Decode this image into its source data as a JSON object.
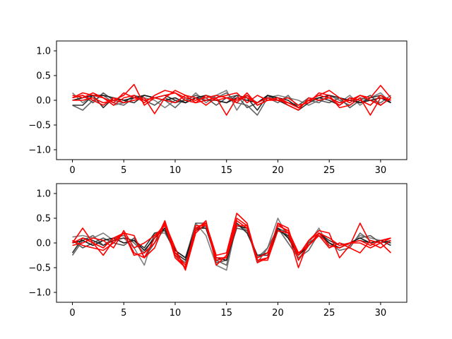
{
  "chart_data": [
    {
      "type": "line",
      "title": "",
      "xlabel": "",
      "ylabel": "",
      "xlim": [
        -1.55,
        32.55
      ],
      "ylim": [
        -1.2,
        1.2
      ],
      "xticks": [
        0,
        5,
        10,
        15,
        20,
        25,
        30
      ],
      "yticks": [
        -1.0,
        -0.5,
        0.0,
        0.5,
        1.0
      ],
      "xtick_labels": [
        "0",
        "5",
        "10",
        "15",
        "20",
        "25",
        "30"
      ],
      "ytick_labels": [
        "−1.0",
        "−0.5",
        "0.0",
        "0.5",
        "1.0"
      ],
      "grid": false,
      "x": [
        0,
        1,
        2,
        3,
        4,
        5,
        6,
        7,
        8,
        9,
        10,
        11,
        12,
        13,
        14,
        15,
        16,
        17,
        18,
        19,
        20,
        21,
        22,
        23,
        24,
        25,
        26,
        27,
        28,
        29,
        30,
        31
      ],
      "series": [
        {
          "color": "#7f7f7f",
          "values": [
            0.15,
            -0.05,
            0.1,
            0.05,
            -0.1,
            -0.05,
            0.1,
            0.05,
            0.0,
            -0.15,
            0.0,
            -0.05,
            0.15,
            -0.05,
            0.1,
            0.2,
            -0.2,
            0.1,
            -0.05,
            0.05,
            0.1,
            0.05,
            0.0,
            -0.1,
            0.0,
            0.05,
            -0.05,
            0.1,
            -0.1,
            0.05,
            0.15,
            -0.05
          ]
        },
        {
          "color": "#666666",
          "values": [
            -0.1,
            -0.2,
            0.0,
            0.1,
            -0.05,
            -0.1,
            0.05,
            0.1,
            0.05,
            0.0,
            -0.15,
            0.05,
            0.0,
            0.1,
            0.05,
            0.15,
            -0.05,
            -0.1,
            -0.3,
            0.05,
            -0.05,
            0.1,
            -0.15,
            0.0,
            -0.05,
            0.1,
            0.0,
            -0.1,
            0.05,
            0.0,
            -0.05,
            0.1
          ]
        },
        {
          "color": "#555555",
          "values": [
            0.05,
            0.1,
            -0.05,
            0.15,
            0.0,
            -0.05,
            0.1,
            0.0,
            -0.1,
            0.05,
            -0.05,
            0.0,
            0.1,
            0.05,
            -0.1,
            0.05,
            0.1,
            -0.15,
            -0.05,
            0.1,
            0.0,
            -0.05,
            -0.1,
            0.05,
            0.0,
            -0.05,
            0.05,
            -0.15,
            0.0,
            0.1,
            -0.1,
            0.05
          ]
        },
        {
          "color": "#333333",
          "values": [
            -0.1,
            -0.1,
            0.1,
            -0.15,
            0.05,
            0.0,
            -0.05,
            0.1,
            0.05,
            0.1,
            0.0,
            -0.05,
            0.05,
            0.0,
            0.0,
            -0.05,
            0.1,
            0.05,
            -0.2,
            0.1,
            0.0,
            -0.1,
            -0.2,
            -0.05,
            0.05,
            0.0,
            -0.1,
            0.05,
            -0.05,
            0.05,
            0.1,
            -0.05
          ]
        },
        {
          "color": "#1a1a1a",
          "values": [
            0.0,
            0.05,
            0.1,
            0.1,
            0.05,
            0.0,
            0.05,
            0.1,
            0.05,
            0.0,
            0.05,
            -0.05,
            0.05,
            0.1,
            0.0,
            -0.05,
            0.05,
            0.0,
            -0.05,
            0.1,
            0.05,
            0.0,
            -0.15,
            0.0,
            0.05,
            0.1,
            0.05,
            0.0,
            -0.05,
            0.0,
            0.05,
            -0.05
          ]
        },
        {
          "color": "#ff0000",
          "values": [
            0.05,
            0.15,
            0.1,
            0.05,
            -0.05,
            0.15,
            0.05,
            0.0,
            0.05,
            0.1,
            0.15,
            0.05,
            0.0,
            0.05,
            0.1,
            0.05,
            -0.05,
            0.15,
            -0.1,
            0.0,
            0.05,
            -0.05,
            -0.15,
            0.0,
            0.1,
            0.05,
            -0.1,
            0.05,
            0.0,
            -0.1,
            0.1,
            0.0
          ]
        },
        {
          "color": "#ff0000",
          "values": [
            0.0,
            0.0,
            0.05,
            -0.05,
            0.0,
            0.1,
            0.32,
            -0.1,
            0.05,
            0.0,
            -0.05,
            0.1,
            0.05,
            -0.1,
            0.05,
            -0.3,
            0.05,
            0.05,
            -0.05,
            0.05,
            0.0,
            -0.05,
            -0.15,
            0.0,
            0.1,
            0.2,
            0.05,
            -0.05,
            0.1,
            0.05,
            0.3,
            0.05
          ]
        },
        {
          "color": "#ff0000",
          "values": [
            0.05,
            0.1,
            0.0,
            -0.1,
            0.05,
            -0.05,
            0.0,
            0.05,
            -0.27,
            0.05,
            0.2,
            0.1,
            -0.05,
            0.0,
            0.05,
            0.1,
            0.15,
            -0.05,
            0.1,
            0.0,
            0.0,
            0.05,
            -0.1,
            -0.05,
            0.15,
            0.1,
            -0.15,
            -0.1,
            0.05,
            -0.3,
            0.05,
            0.0
          ]
        },
        {
          "color": "#ff0000",
          "values": [
            0.1,
            0.05,
            0.15,
            0.05,
            -0.1,
            0.05,
            0.1,
            -0.05,
            0.1,
            0.2,
            0.15,
            0.0,
            -0.05,
            0.1,
            0.0,
            0.05,
            0.0,
            0.1,
            -0.1,
            0.0,
            0.05,
            -0.1,
            -0.2,
            0.05,
            0.0,
            0.05,
            -0.05,
            0.0,
            0.1,
            0.0,
            -0.1,
            0.05
          ]
        }
      ]
    },
    {
      "type": "line",
      "title": "",
      "xlabel": "",
      "ylabel": "",
      "xlim": [
        -1.55,
        32.55
      ],
      "ylim": [
        -1.2,
        1.2
      ],
      "xticks": [
        0,
        5,
        10,
        15,
        20,
        25,
        30
      ],
      "yticks": [
        -1.0,
        -0.5,
        0.0,
        0.5,
        1.0
      ],
      "xtick_labels": [
        "0",
        "5",
        "10",
        "15",
        "20",
        "25",
        "30"
      ],
      "ytick_labels": [
        "−1.0",
        "−0.5",
        "0.0",
        "0.5",
        "1.0"
      ],
      "grid": false,
      "x": [
        0,
        1,
        2,
        3,
        4,
        5,
        6,
        7,
        8,
        9,
        10,
        11,
        12,
        13,
        14,
        15,
        16,
        17,
        18,
        19,
        20,
        21,
        22,
        23,
        24,
        25,
        26,
        27,
        28,
        29,
        30,
        31
      ],
      "series": [
        {
          "color": "#7f7f7f",
          "values": [
            0.12,
            0.15,
            0.1,
            0.2,
            0.05,
            0.1,
            -0.1,
            -0.45,
            0.2,
            0.2,
            -0.15,
            -0.3,
            0.4,
            0.15,
            -0.45,
            -0.55,
            0.4,
            0.25,
            -0.3,
            -0.1,
            0.5,
            0.1,
            -0.25,
            0.0,
            0.3,
            -0.1,
            0.0,
            -0.05,
            0.15,
            0.1,
            0.05,
            0.1
          ]
        },
        {
          "color": "#666666",
          "values": [
            -0.25,
            0.05,
            0.15,
            -0.05,
            0.1,
            0.15,
            0.0,
            -0.2,
            0.15,
            0.3,
            -0.25,
            -0.4,
            0.3,
            0.3,
            -0.35,
            -0.45,
            0.35,
            0.3,
            -0.4,
            -0.1,
            0.3,
            0.0,
            -0.3,
            -0.15,
            0.2,
            0.0,
            -0.15,
            -0.1,
            0.2,
            0.05,
            0.0,
            0.05
          ]
        },
        {
          "color": "#555555",
          "values": [
            0.05,
            -0.1,
            0.0,
            0.1,
            0.0,
            -0.05,
            0.1,
            -0.3,
            0.0,
            0.3,
            -0.2,
            -0.35,
            0.4,
            0.4,
            -0.4,
            -0.35,
            0.3,
            0.25,
            -0.25,
            -0.2,
            0.3,
            0.2,
            -0.35,
            0.0,
            0.15,
            0.0,
            -0.1,
            0.0,
            0.1,
            0.15,
            0.0,
            0.05
          ]
        },
        {
          "color": "#333333",
          "values": [
            -0.2,
            0.1,
            0.05,
            -0.05,
            0.05,
            0.1,
            0.05,
            -0.1,
            0.2,
            0.25,
            -0.2,
            -0.35,
            0.25,
            0.35,
            -0.35,
            -0.3,
            0.4,
            0.2,
            -0.25,
            -0.25,
            0.25,
            0.15,
            -0.2,
            -0.05,
            0.2,
            0.05,
            -0.05,
            0.0,
            0.05,
            0.0,
            0.05,
            -0.05
          ]
        },
        {
          "color": "#1a1a1a",
          "values": [
            0.0,
            0.05,
            -0.05,
            0.05,
            0.1,
            0.0,
            0.05,
            -0.15,
            0.1,
            0.3,
            -0.15,
            -0.3,
            0.3,
            0.3,
            -0.3,
            -0.35,
            0.35,
            0.3,
            -0.3,
            -0.2,
            0.3,
            0.1,
            -0.25,
            -0.05,
            0.2,
            0.0,
            -0.1,
            0.0,
            0.1,
            0.0,
            0.05,
            0.0
          ]
        },
        {
          "color": "#ff0000",
          "values": [
            0.0,
            0.3,
            0.0,
            -0.1,
            0.1,
            0.2,
            0.15,
            -0.3,
            -0.1,
            0.4,
            -0.1,
            -0.55,
            0.2,
            0.4,
            -0.25,
            -0.2,
            0.6,
            0.4,
            -0.35,
            -0.35,
            0.25,
            0.2,
            -0.5,
            0.05,
            0.2,
            0.1,
            -0.05,
            0.0,
            0.0,
            -0.1,
            0.0,
            0.1
          ]
        },
        {
          "color": "#ff0000",
          "values": [
            0.05,
            -0.05,
            -0.1,
            -0.15,
            0.0,
            0.2,
            -0.25,
            -0.2,
            0.0,
            0.45,
            -0.2,
            -0.45,
            0.25,
            0.45,
            -0.45,
            -0.25,
            0.5,
            0.35,
            -0.4,
            -0.3,
            0.4,
            0.2,
            -0.25,
            0.05,
            0.25,
            0.2,
            -0.3,
            -0.05,
            0.4,
            0.0,
            -0.1,
            0.05
          ]
        },
        {
          "color": "#ff0000",
          "values": [
            -0.05,
            0.0,
            0.1,
            0.05,
            -0.1,
            0.25,
            -0.1,
            0.0,
            0.15,
            0.35,
            -0.25,
            -0.5,
            0.35,
            0.35,
            -0.35,
            -0.3,
            0.45,
            0.3,
            -0.3,
            -0.2,
            0.35,
            0.25,
            -0.2,
            -0.05,
            0.15,
            -0.1,
            0.0,
            -0.1,
            -0.2,
            0.05,
            0.0,
            -0.2
          ]
        },
        {
          "color": "#ff0000",
          "values": [
            0.0,
            0.1,
            0.0,
            -0.25,
            0.05,
            0.2,
            -0.2,
            -0.3,
            0.1,
            0.4,
            -0.3,
            -0.5,
            0.3,
            0.4,
            -0.3,
            -0.3,
            0.35,
            0.35,
            -0.35,
            -0.3,
            0.4,
            0.3,
            -0.35,
            -0.05,
            0.2,
            -0.05,
            -0.1,
            0.0,
            0.05,
            -0.05,
            0.05,
            0.1
          ]
        }
      ]
    }
  ]
}
